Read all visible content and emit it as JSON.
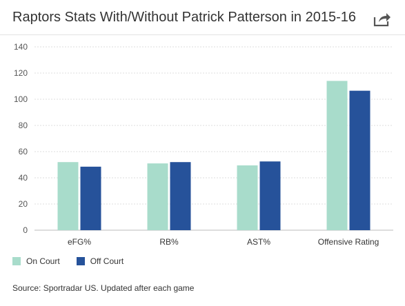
{
  "header": {
    "title": "Raptors Stats With/Without Patrick Patterson in 2015-16",
    "share_icon": "share-arrow-icon"
  },
  "colors": {
    "on_court": "#a8dccb",
    "off_court": "#26529a",
    "grid": "#dddddd",
    "axis_text": "#555555"
  },
  "chart_data": {
    "type": "bar",
    "title": "Raptors Stats With/Without Patrick Patterson in 2015-16",
    "categories": [
      "eFG%",
      "RB%",
      "AST%",
      "Offensive Rating"
    ],
    "series": [
      {
        "name": "On Court",
        "values": [
          52,
          51,
          49.5,
          114
        ]
      },
      {
        "name": "Off Court",
        "values": [
          48.5,
          52,
          52.5,
          106.5
        ]
      }
    ],
    "xlabel": "",
    "ylabel": "",
    "ylim": [
      0,
      140
    ],
    "yticks": [
      0,
      20,
      40,
      60,
      80,
      100,
      120,
      140
    ],
    "grid": "horizontal dashed",
    "legend_position": "bottom-left"
  },
  "legend": {
    "items": [
      {
        "label": "On Court"
      },
      {
        "label": "Off Court"
      }
    ]
  },
  "footer": {
    "source": "Source: Sportradar US. Updated after each game"
  }
}
